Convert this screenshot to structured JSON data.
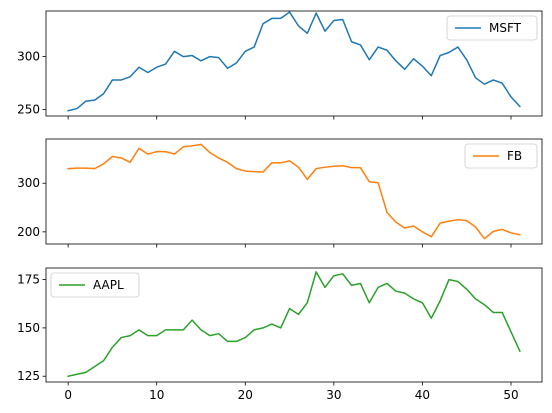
{
  "chart_data": [
    {
      "type": "line",
      "title": "",
      "xlabel": "",
      "ylabel": "",
      "xlim": [
        -2.5,
        53.5
      ],
      "ylim": [
        244,
        343
      ],
      "yticks": [
        250,
        300
      ],
      "xticks": [],
      "legend_position": "upper-right",
      "grid": false,
      "series": [
        {
          "name": "MSFT",
          "color": "#1f77b4",
          "x": [
            0,
            1,
            2,
            3,
            4,
            5,
            6,
            7,
            8,
            9,
            10,
            11,
            12,
            13,
            14,
            15,
            16,
            17,
            18,
            19,
            20,
            21,
            22,
            23,
            24,
            25,
            26,
            27,
            28,
            29,
            30,
            31,
            32,
            33,
            34,
            35,
            36,
            37,
            38,
            39,
            40,
            41,
            42,
            43,
            44,
            45,
            46,
            47,
            48,
            49,
            50,
            51
          ],
          "values": [
            249,
            251,
            258,
            259,
            265,
            278,
            278,
            281,
            290,
            285,
            290,
            293,
            305,
            300,
            301,
            296,
            300,
            299,
            289,
            294,
            305,
            309,
            331,
            336,
            336,
            342,
            329,
            322,
            341,
            324,
            334,
            335,
            314,
            311,
            297,
            309,
            306,
            296,
            288,
            298,
            291,
            282,
            301,
            304,
            309,
            297,
            280,
            274,
            278,
            275,
            262,
            253
          ]
        }
      ]
    },
    {
      "type": "line",
      "title": "",
      "xlabel": "",
      "ylabel": "",
      "xlim": [
        -2.5,
        53.5
      ],
      "ylim": [
        175,
        391
      ],
      "yticks": [
        200,
        300
      ],
      "xticks": [],
      "legend_position": "upper-right",
      "grid": false,
      "series": [
        {
          "name": "FB",
          "color": "#ff7f0e",
          "x": [
            0,
            1,
            2,
            3,
            4,
            5,
            6,
            7,
            8,
            9,
            10,
            11,
            12,
            13,
            14,
            15,
            16,
            17,
            18,
            19,
            20,
            21,
            22,
            23,
            24,
            25,
            26,
            27,
            28,
            29,
            30,
            31,
            32,
            33,
            34,
            35,
            36,
            37,
            38,
            39,
            40,
            41,
            42,
            43,
            44,
            45,
            46,
            47,
            48,
            49,
            50,
            51
          ],
          "values": [
            330,
            331,
            331,
            330,
            340,
            355,
            352,
            343,
            372,
            360,
            365,
            365,
            360,
            375,
            377,
            380,
            363,
            352,
            343,
            330,
            325,
            324,
            323,
            342,
            342,
            346,
            333,
            308,
            330,
            333,
            335,
            336,
            332,
            332,
            303,
            301,
            240,
            220,
            208,
            212,
            200,
            190,
            218,
            222,
            225,
            223,
            210,
            186,
            201,
            205,
            198,
            194
          ]
        }
      ]
    },
    {
      "type": "line",
      "title": "",
      "xlabel": "",
      "ylabel": "",
      "xlim": [
        -2.5,
        53.5
      ],
      "ylim": [
        122,
        181
      ],
      "yticks": [
        125,
        150,
        175
      ],
      "xticks": [
        0,
        10,
        20,
        30,
        40,
        50
      ],
      "legend_position": "upper-left",
      "grid": false,
      "series": [
        {
          "name": "AAPL",
          "color": "#2ca02c",
          "x": [
            0,
            1,
            2,
            3,
            4,
            5,
            6,
            7,
            8,
            9,
            10,
            11,
            12,
            13,
            14,
            15,
            16,
            17,
            18,
            19,
            20,
            21,
            22,
            23,
            24,
            25,
            26,
            27,
            28,
            29,
            30,
            31,
            32,
            33,
            34,
            35,
            36,
            37,
            38,
            39,
            40,
            41,
            42,
            43,
            44,
            45,
            46,
            47,
            48,
            49,
            50,
            51
          ],
          "values": [
            125,
            126,
            127,
            130,
            133,
            140,
            145,
            146,
            149,
            146,
            146,
            149,
            149,
            149,
            154,
            149,
            146,
            147,
            143,
            143,
            145,
            149,
            150,
            152,
            150,
            160,
            157,
            163,
            179,
            171,
            177,
            178,
            172,
            173,
            163,
            171,
            173,
            169,
            168,
            165,
            163,
            155,
            164,
            175,
            174,
            170,
            165,
            162,
            158,
            158,
            148,
            138
          ]
        }
      ]
    }
  ]
}
